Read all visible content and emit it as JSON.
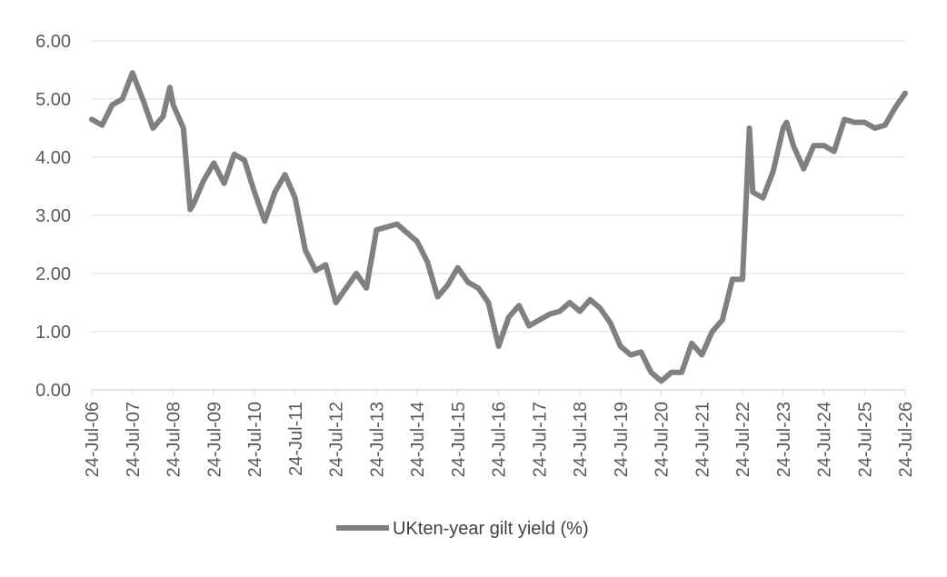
{
  "chart_data": {
    "type": "line",
    "title": "",
    "xlabel": "",
    "ylabel": "",
    "ylim": [
      0,
      6
    ],
    "y_ticks": [
      "0.00",
      "1.00",
      "2.00",
      "3.00",
      "4.00",
      "5.00",
      "6.00"
    ],
    "x_ticks": [
      "24-Jul-06",
      "24-Jul-07",
      "24-Jul-08",
      "24-Jul-09",
      "24-Jul-10",
      "24-Jul-11",
      "24-Jul-12",
      "24-Jul-13",
      "24-Jul-14",
      "24-Jul-15",
      "24-Jul-16",
      "24-Jul-17",
      "24-Jul-18",
      "24-Jul-19",
      "24-Jul-20",
      "24-Jul-21",
      "24-Jul-22",
      "24-Jul-23",
      "24-Jul-24",
      "24-Jul-25",
      "24-Jul-26"
    ],
    "grid": true,
    "legend_position": "bottom",
    "series_color": "#808080",
    "gridline_color": "#d9d9d9",
    "series": [
      {
        "name": "UKten-year gilt yield (%)",
        "x": [
          "2006-07-24",
          "2006-10-24",
          "2007-01-24",
          "2007-04-24",
          "2007-07-24",
          "2007-10-24",
          "2008-01-24",
          "2008-04-24",
          "2008-06-24",
          "2008-07-24",
          "2008-10-24",
          "2008-12-24",
          "2009-01-24",
          "2009-04-24",
          "2009-07-24",
          "2009-10-24",
          "2010-01-24",
          "2010-04-24",
          "2010-07-24",
          "2010-10-24",
          "2011-01-24",
          "2011-04-24",
          "2011-07-24",
          "2011-10-24",
          "2012-01-24",
          "2012-04-24",
          "2012-07-24",
          "2012-10-24",
          "2013-01-24",
          "2013-04-24",
          "2013-07-24",
          "2013-10-24",
          "2014-01-24",
          "2014-04-24",
          "2014-07-24",
          "2014-10-24",
          "2015-01-24",
          "2015-04-24",
          "2015-07-24",
          "2015-10-24",
          "2016-01-24",
          "2016-04-24",
          "2016-07-24",
          "2016-10-24",
          "2017-01-24",
          "2017-04-24",
          "2017-07-24",
          "2017-10-24",
          "2018-01-24",
          "2018-04-24",
          "2018-07-24",
          "2018-10-24",
          "2019-01-24",
          "2019-04-24",
          "2019-07-24",
          "2019-10-24",
          "2020-01-24",
          "2020-04-24",
          "2020-07-24",
          "2020-10-24",
          "2021-01-24",
          "2021-04-24",
          "2021-07-24",
          "2021-10-24",
          "2022-01-24",
          "2022-04-24",
          "2022-07-24",
          "2022-09-24",
          "2022-10-24",
          "2023-01-24",
          "2023-04-24",
          "2023-07-24",
          "2023-08-24",
          "2023-10-24",
          "2024-01-24",
          "2024-04-24",
          "2024-07-24",
          "2024-10-24",
          "2025-01-24",
          "2025-04-24",
          "2025-07-24",
          "2025-10-24",
          "2026-01-24",
          "2026-04-24",
          "2026-07-24"
        ],
        "values": [
          4.65,
          4.55,
          4.9,
          5.0,
          5.45,
          5.0,
          4.5,
          4.7,
          5.2,
          4.9,
          4.5,
          3.1,
          3.2,
          3.6,
          3.9,
          3.55,
          4.05,
          3.95,
          3.4,
          2.9,
          3.4,
          3.7,
          3.3,
          2.4,
          2.05,
          2.15,
          1.5,
          1.75,
          2.0,
          1.75,
          2.75,
          2.8,
          2.85,
          2.7,
          2.55,
          2.2,
          1.6,
          1.8,
          2.1,
          1.85,
          1.75,
          1.5,
          0.75,
          1.25,
          1.45,
          1.1,
          1.2,
          1.3,
          1.35,
          1.5,
          1.35,
          1.55,
          1.4,
          1.15,
          0.75,
          0.6,
          0.65,
          0.3,
          0.15,
          0.3,
          0.3,
          0.8,
          0.6,
          1.0,
          1.2,
          1.9,
          1.9,
          4.5,
          3.4,
          3.3,
          3.75,
          4.5,
          4.6,
          4.2,
          3.8,
          4.2,
          4.2,
          4.1,
          4.65,
          4.6,
          4.6,
          4.5,
          4.55,
          4.85,
          5.1
        ]
      }
    ]
  }
}
